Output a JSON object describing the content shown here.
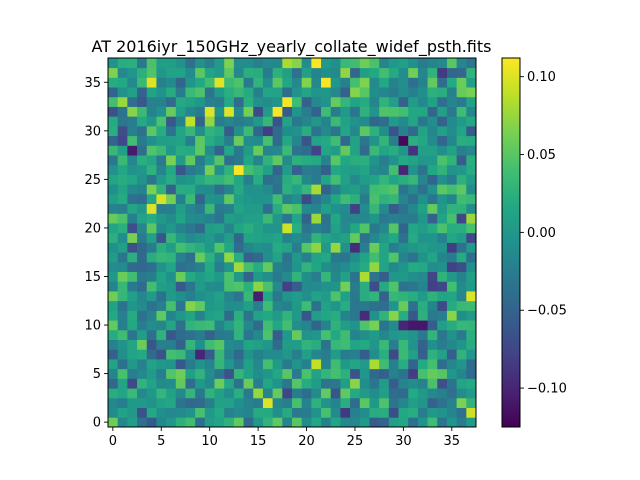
{
  "chart_data": {
    "type": "heatmap",
    "title": "AT 2016iyr_150GHz_yearly_collate_widef_psth.fits",
    "xlabel": "",
    "ylabel": "",
    "rows": 38,
    "cols": 38,
    "xlim": [
      -0.5,
      37.5
    ],
    "ylim": [
      -0.5,
      37.5
    ],
    "x_ticks": [
      0,
      5,
      10,
      15,
      20,
      25,
      30,
      35
    ],
    "y_ticks": [
      0,
      5,
      10,
      15,
      20,
      25,
      30,
      35
    ],
    "colormap": "viridis",
    "vmin": -0.125,
    "vmax": 0.112,
    "colorbar_ticks": [
      0.1,
      0.05,
      0.0,
      -0.05,
      -0.1
    ],
    "colorbar_tick_labels": [
      "0.10",
      "0.05",
      "0.00",
      "−0.05",
      "−0.10"
    ],
    "origin": "lower",
    "grid": false,
    "value_std": 0.032,
    "random_seed": 2016,
    "hotspots": [
      {
        "x": 21,
        "y": 37,
        "value": 0.11
      },
      {
        "x": 22,
        "y": 35,
        "value": 0.11
      },
      {
        "x": 4,
        "y": 35,
        "value": 0.1
      },
      {
        "x": 18,
        "y": 33,
        "value": 0.11
      },
      {
        "x": 10,
        "y": 32,
        "value": 0.1
      },
      {
        "x": 12,
        "y": 32,
        "value": 0.1
      },
      {
        "x": 17,
        "y": 32,
        "value": 0.11
      },
      {
        "x": 8,
        "y": 31,
        "value": 0.09
      },
      {
        "x": 13,
        "y": 26,
        "value": 0.11
      },
      {
        "x": 4,
        "y": 22,
        "value": 0.1
      },
      {
        "x": 37,
        "y": 13,
        "value": 0.1
      },
      {
        "x": 21,
        "y": 6,
        "value": 0.09
      },
      {
        "x": 16,
        "y": 2,
        "value": 0.1
      },
      {
        "x": 30,
        "y": 29,
        "value": -0.12
      },
      {
        "x": 30,
        "y": 26,
        "value": -0.1
      },
      {
        "x": 31,
        "y": 28,
        "value": -0.09
      },
      {
        "x": 25,
        "y": 22,
        "value": -0.08
      },
      {
        "x": 31,
        "y": 10,
        "value": -0.11
      },
      {
        "x": 32,
        "y": 10,
        "value": -0.11
      },
      {
        "x": 30,
        "y": 10,
        "value": -0.1
      },
      {
        "x": 33,
        "y": 14,
        "value": -0.08
      },
      {
        "x": 35,
        "y": 16,
        "value": -0.08
      },
      {
        "x": 3,
        "y": 33,
        "value": -0.06
      },
      {
        "x": 29,
        "y": 1,
        "value": -0.07
      }
    ]
  }
}
